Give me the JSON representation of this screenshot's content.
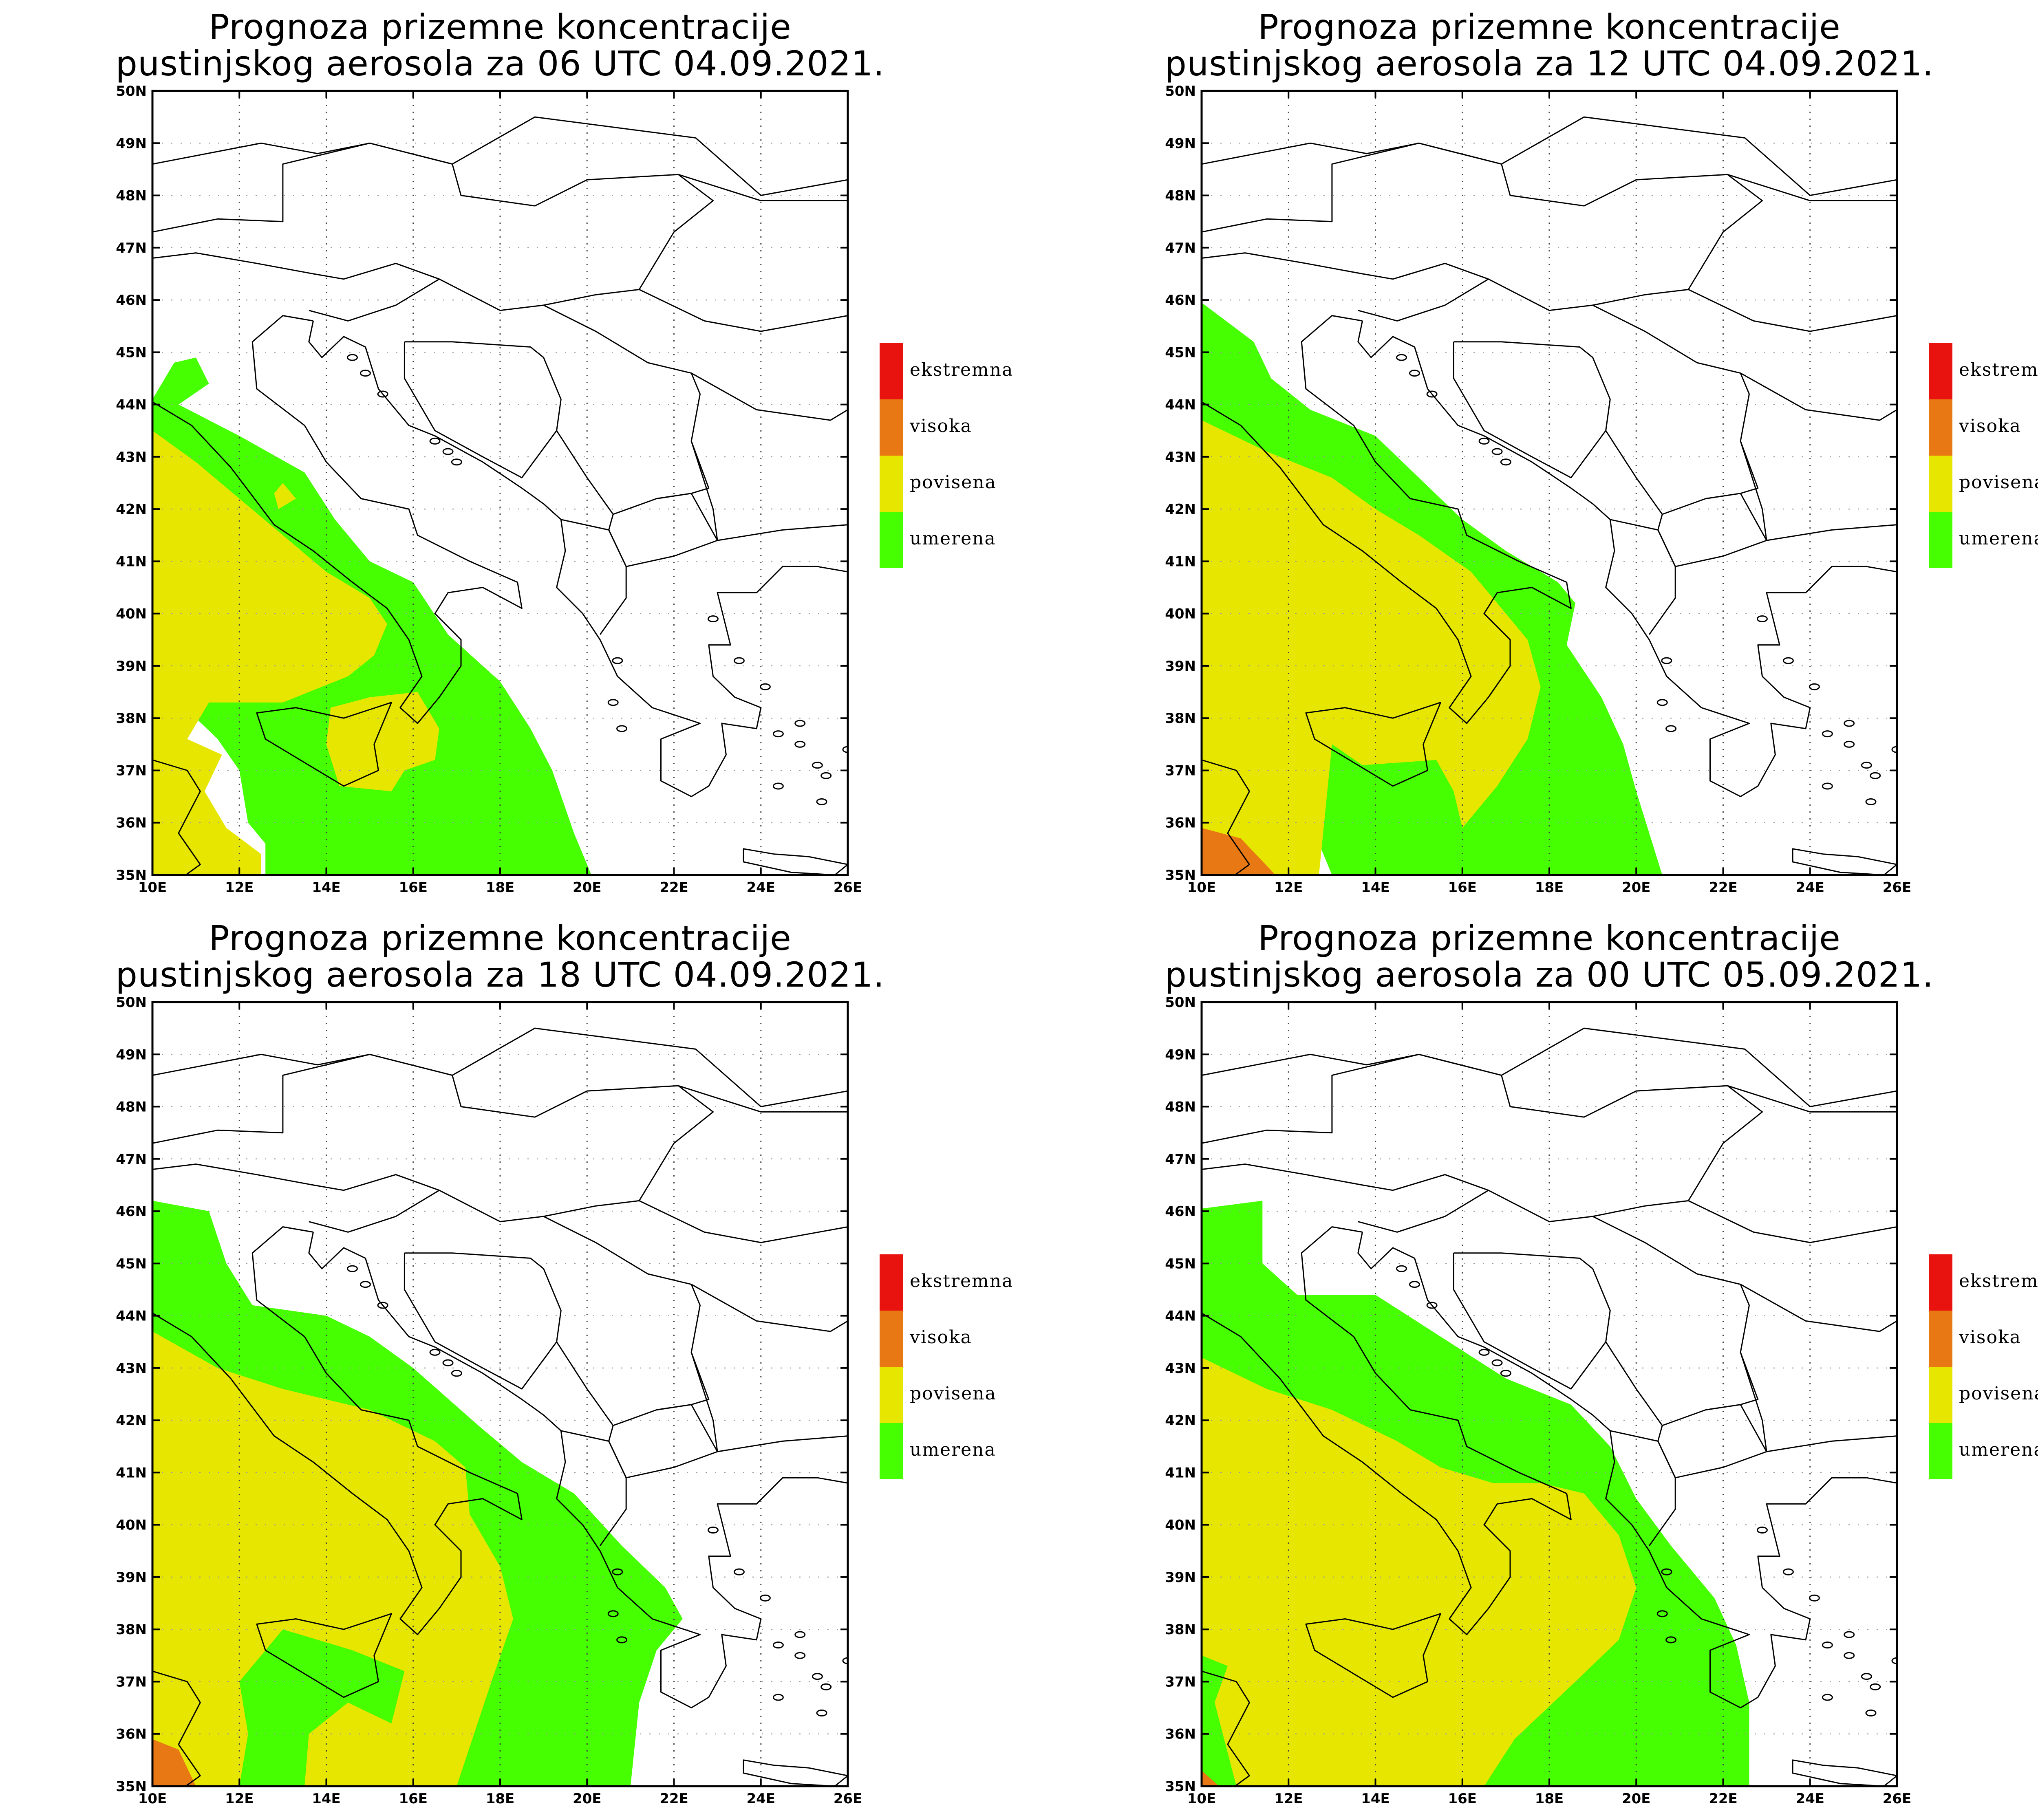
{
  "figure": {
    "panels": [
      {
        "title_line1": "Prognoza prizemne koncentracije",
        "title_line2": "pustinjskog aerosola za 06 UTC 04.09.2021."
      },
      {
        "title_line1": "Prognoza prizemne koncentracije",
        "title_line2": "pustinjskog aerosola za 12 UTC 04.09.2021."
      },
      {
        "title_line1": "Prognoza prizemne koncentracije",
        "title_line2": "pustinjskog aerosola za 18 UTC 04.09.2021."
      },
      {
        "title_line1": "Prognoza prizemne koncentracije",
        "title_line2": "pustinjskog aerosola za 00 UTC 05.09.2021."
      }
    ],
    "lat_ticks": [
      "35N",
      "36N",
      "37N",
      "38N",
      "39N",
      "40N",
      "41N",
      "42N",
      "43N",
      "44N",
      "45N",
      "46N",
      "47N",
      "48N",
      "49N",
      "50N"
    ],
    "lon_ticks": [
      "10E",
      "12E",
      "14E",
      "16E",
      "18E",
      "20E",
      "22E",
      "24E",
      "26E"
    ],
    "legend": [
      {
        "label": "ekstremna",
        "color": "#e8120f"
      },
      {
        "label": "visoka",
        "color": "#e87814"
      },
      {
        "label": "povisena",
        "color": "#e6e600"
      },
      {
        "label": "umerena",
        "color": "#46ff00"
      }
    ],
    "colors": {
      "umerena": "#46ff00",
      "povisena": "#e6e600",
      "visoka": "#e87814",
      "ekstremna": "#e8120f",
      "border": "#000000",
      "grid": "#888888"
    }
  }
}
